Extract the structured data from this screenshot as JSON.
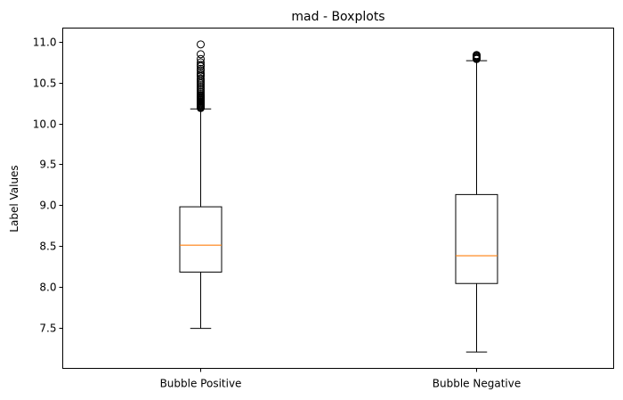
{
  "chart_data": {
    "type": "boxplot",
    "title": "mad - Boxplots",
    "xlabel": "",
    "ylabel": "Label Values",
    "ylim": [
      7.0,
      11.17
    ],
    "yticks": [
      "7.5",
      "8.0",
      "8.5",
      "9.0",
      "9.5",
      "10.0",
      "10.5",
      "11.0"
    ],
    "grid": false,
    "categories": [
      "Bubble Positive",
      "Bubble Negative"
    ],
    "boxes": [
      {
        "whisker_low": 7.49,
        "q1": 8.18,
        "median": 8.51,
        "q3": 8.98,
        "whisker_high": 10.18,
        "outliers": [
          10.19,
          10.2,
          10.21,
          10.22,
          10.23,
          10.24,
          10.25,
          10.26,
          10.27,
          10.28,
          10.29,
          10.3,
          10.31,
          10.32,
          10.33,
          10.34,
          10.35,
          10.37,
          10.39,
          10.41,
          10.43,
          10.45,
          10.47,
          10.49,
          10.51,
          10.53,
          10.55,
          10.58,
          10.6,
          10.62,
          10.65,
          10.67,
          10.7,
          10.72,
          10.75,
          10.79,
          10.85,
          10.97
        ]
      },
      {
        "whisker_low": 7.2,
        "q1": 8.04,
        "median": 8.38,
        "q3": 9.13,
        "whisker_high": 10.77,
        "outliers": [
          10.79,
          10.8,
          10.81,
          10.82,
          10.83,
          10.84
        ]
      }
    ],
    "colors": {
      "box": "#000000",
      "median": "#ff7f0e"
    }
  }
}
